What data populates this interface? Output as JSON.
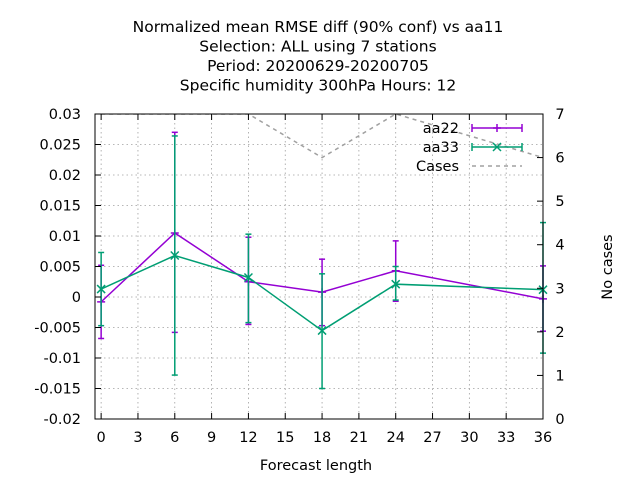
{
  "chart_data": {
    "type": "line",
    "title_lines": [
      "Normalized mean RMSE diff (90% conf) vs aa11",
      "Selection: ALL using     7 stations",
      "Period: 20200629-20200705",
      "Specific humidity 300hPa   Hours:  12"
    ],
    "xlabel": "Forecast length",
    "ylabel_right": "No cases",
    "xlim": [
      -0.5,
      36
    ],
    "ylim": [
      -0.02,
      0.03
    ],
    "y2lim": [
      0,
      7
    ],
    "x_ticks": [
      0,
      3,
      6,
      9,
      12,
      15,
      18,
      21,
      24,
      27,
      30,
      33,
      36
    ],
    "y_ticks": [
      -0.02,
      -0.015,
      -0.01,
      -0.005,
      0,
      0.005,
      0.01,
      0.015,
      0.02,
      0.025,
      0.03
    ],
    "y_tick_labels": [
      "-0.02",
      "-0.015",
      "-0.01",
      "-0.005",
      "0",
      "0.005",
      "0.01",
      "0.015",
      "0.02",
      "0.025",
      "0.03"
    ],
    "y2_ticks": [
      0,
      1,
      2,
      3,
      4,
      5,
      6,
      7
    ],
    "grid": true,
    "legend_position": "top-right",
    "series": [
      {
        "name": "aa22",
        "color": "#9400d3",
        "marker": "plus",
        "x": [
          0,
          6,
          12,
          18,
          24,
          36
        ],
        "y": [
          -0.0008,
          0.0105,
          0.0025,
          0.0008,
          0.0043,
          -0.0003
        ],
        "err_low": [
          -0.0068,
          -0.0058,
          -0.0045,
          -0.0047,
          -0.0007,
          -0.0056
        ],
        "err_high": [
          0.0052,
          0.027,
          0.0098,
          0.0062,
          0.0092,
          0.0051
        ]
      },
      {
        "name": "aa33",
        "color": "#009e73",
        "marker": "cross",
        "x": [
          0,
          6,
          12,
          18,
          24,
          36
        ],
        "y": [
          0.0013,
          0.0068,
          0.0032,
          -0.0055,
          0.0021,
          0.0012
        ],
        "err_low": [
          -0.0047,
          -0.0128,
          -0.0042,
          -0.015,
          -0.0005,
          -0.0092
        ],
        "err_high": [
          0.0073,
          0.0264,
          0.0103,
          0.0038,
          0.005,
          0.0122
        ]
      },
      {
        "name": "Cases",
        "color": "#a0a0a0",
        "dash": true,
        "axis": "right",
        "x": [
          0,
          6,
          12,
          18,
          24,
          36
        ],
        "y": [
          7,
          7,
          7,
          6,
          7,
          6
        ]
      }
    ]
  }
}
